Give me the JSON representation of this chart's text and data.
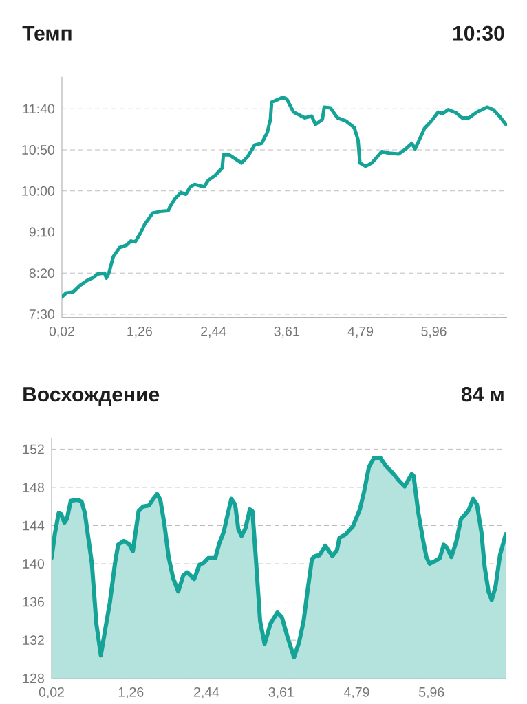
{
  "chart_data": [
    {
      "type": "line",
      "title": "Темп",
      "annotations": [
        "10:30"
      ],
      "color": "#14a396",
      "line_style": "solid",
      "grid": "y",
      "xlim": [
        0.02,
        7.13
      ],
      "xticks": [
        {
          "value": 0.02,
          "label": "0,02"
        },
        {
          "value": 1.26,
          "label": "1,26"
        },
        {
          "value": 2.44,
          "label": "2,44"
        },
        {
          "value": 3.61,
          "label": "3,61"
        },
        {
          "value": 4.79,
          "label": "4,79"
        },
        {
          "value": 5.96,
          "label": "5,96"
        }
      ],
      "ylim": [
        446,
        739
      ],
      "yticks": [
        {
          "value": 450,
          "label": "7:30"
        },
        {
          "value": 500,
          "label": "8:20"
        },
        {
          "value": 550,
          "label": "9:10"
        },
        {
          "value": 600,
          "label": "10:00"
        },
        {
          "value": 650,
          "label": "10:50"
        },
        {
          "value": 700,
          "label": "11:40"
        }
      ],
      "x": [
        0.02,
        0.09,
        0.2,
        0.31,
        0.42,
        0.53,
        0.59,
        0.7,
        0.73,
        0.77,
        0.84,
        0.94,
        1.05,
        1.12,
        1.19,
        1.27,
        1.34,
        1.47,
        1.59,
        1.72,
        1.74,
        1.83,
        1.92,
        2.0,
        2.07,
        2.14,
        2.29,
        2.36,
        2.47,
        2.58,
        2.6,
        2.69,
        2.89,
        2.99,
        3.1,
        3.21,
        3.3,
        3.35,
        3.37,
        3.43,
        3.55,
        3.61,
        3.72,
        3.9,
        4.01,
        4.07,
        4.18,
        4.21,
        4.31,
        4.42,
        4.56,
        4.69,
        4.75,
        4.78,
        4.87,
        4.97,
        5.13,
        5.24,
        5.4,
        5.51,
        5.61,
        5.66,
        5.74,
        5.81,
        5.92,
        6.03,
        6.1,
        6.19,
        6.32,
        6.41,
        6.52,
        6.65,
        6.81,
        6.91,
        7.02,
        7.11
      ],
      "values": [
        471,
        476,
        477,
        485,
        491,
        495,
        499,
        500,
        494,
        500,
        520,
        531,
        534,
        539,
        538,
        548,
        559,
        573,
        575,
        576,
        580,
        591,
        598,
        596,
        605,
        608,
        605,
        613,
        619,
        628,
        644,
        644,
        634,
        642,
        656,
        658,
        671,
        687,
        708,
        710,
        714,
        712,
        696,
        689,
        691,
        681,
        687,
        702,
        701,
        689,
        685,
        677,
        662,
        634,
        630,
        634,
        648,
        646,
        645,
        651,
        658,
        651,
        664,
        676,
        685,
        696,
        694,
        699,
        695,
        689,
        689,
        696,
        702,
        699,
        690,
        681
      ]
    },
    {
      "type": "area",
      "title": "Восхождение",
      "annotations": [
        "84 м"
      ],
      "color": "#14a396",
      "line_style": "solid",
      "grid": "y",
      "xlim": [
        0.02,
        7.13
      ],
      "xticks": [
        {
          "value": 0.02,
          "label": "0,02"
        },
        {
          "value": 1.26,
          "label": "1,26"
        },
        {
          "value": 2.44,
          "label": "2,44"
        },
        {
          "value": 3.61,
          "label": "3,61"
        },
        {
          "value": 4.79,
          "label": "4,79"
        },
        {
          "value": 5.96,
          "label": "5,96"
        }
      ],
      "ylim": [
        128,
        153.2
      ],
      "yticks": [
        128,
        132,
        136,
        140,
        144,
        148,
        152
      ],
      "x": [
        0.02,
        0.07,
        0.13,
        0.17,
        0.22,
        0.26,
        0.32,
        0.43,
        0.49,
        0.54,
        0.59,
        0.65,
        0.72,
        0.79,
        0.86,
        0.93,
        1.01,
        1.06,
        1.15,
        1.24,
        1.29,
        1.38,
        1.45,
        1.54,
        1.61,
        1.67,
        1.72,
        1.78,
        1.85,
        1.92,
        2.0,
        2.08,
        2.14,
        2.25,
        2.33,
        2.4,
        2.47,
        2.58,
        2.64,
        2.71,
        2.76,
        2.83,
        2.89,
        2.94,
        2.99,
        3.05,
        3.12,
        3.16,
        3.21,
        3.28,
        3.35,
        3.44,
        3.55,
        3.62,
        3.71,
        3.81,
        3.89,
        3.96,
        4.02,
        4.09,
        4.14,
        4.21,
        4.3,
        4.41,
        4.48,
        4.52,
        4.62,
        4.73,
        4.84,
        4.91,
        4.98,
        5.06,
        5.16,
        5.24,
        5.34,
        5.45,
        5.54,
        5.65,
        5.68,
        5.75,
        5.83,
        5.88,
        5.93,
        6.02,
        6.09,
        6.15,
        6.2,
        6.27,
        6.35,
        6.42,
        6.49,
        6.54,
        6.61,
        6.67,
        6.74,
        6.79,
        6.85,
        6.9,
        6.96,
        7.03,
        7.12
      ],
      "values": [
        140.6,
        143.1,
        145.3,
        145.2,
        144.3,
        144.7,
        146.6,
        146.7,
        146.5,
        145.3,
        142.9,
        140.0,
        133.7,
        130.4,
        133.2,
        135.9,
        140.0,
        142.0,
        142.4,
        142.0,
        141.3,
        145.5,
        146.0,
        146.1,
        146.8,
        147.3,
        146.7,
        144.3,
        140.7,
        138.5,
        137.1,
        138.8,
        139.1,
        138.4,
        139.9,
        140.1,
        140.6,
        140.6,
        142.1,
        143.3,
        144.8,
        146.8,
        146.2,
        143.6,
        142.9,
        143.7,
        145.7,
        145.5,
        140.9,
        134.0,
        131.6,
        133.7,
        134.9,
        134.4,
        132.3,
        130.2,
        131.8,
        134.0,
        137.1,
        140.5,
        140.8,
        140.9,
        141.9,
        140.8,
        141.4,
        142.7,
        143.1,
        143.9,
        145.7,
        147.7,
        150.1,
        151.1,
        151.1,
        150.3,
        149.6,
        148.7,
        148.1,
        149.4,
        149.2,
        145.5,
        142.4,
        140.7,
        140.0,
        140.3,
        140.6,
        142.0,
        141.7,
        140.7,
        142.4,
        144.7,
        145.2,
        145.6,
        146.8,
        146.2,
        143.3,
        139.7,
        137.1,
        136.2,
        137.6,
        140.9,
        143.1
      ]
    }
  ]
}
